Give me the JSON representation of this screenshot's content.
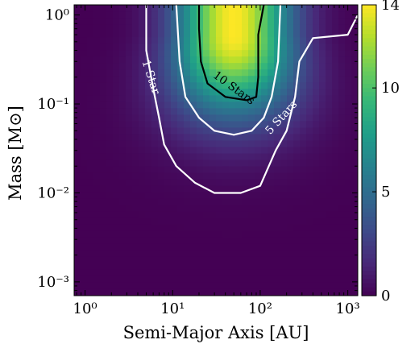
{
  "chart_data": {
    "type": "heatmap",
    "title": "",
    "xlabel": "Semi-Major Axis [AU]",
    "ylabel": "Mass [M⊙]",
    "x_scale": "log",
    "y_scale": "log",
    "xlim": [
      0.75,
      1300
    ],
    "ylim": [
      0.0007,
      1.3
    ],
    "x_ticks": [
      {
        "value": 1,
        "label": "10⁰"
      },
      {
        "value": 10,
        "label": "10¹"
      },
      {
        "value": 100,
        "label": "10²"
      },
      {
        "value": 1000,
        "label": "10³"
      }
    ],
    "y_ticks": [
      {
        "value": 0.001,
        "label": "10⁻³"
      },
      {
        "value": 0.01,
        "label": "10⁻²"
      },
      {
        "value": 0.1,
        "label": "10⁻¹"
      },
      {
        "value": 1,
        "label": "10⁰"
      }
    ],
    "colorbar": {
      "colormap": "viridis",
      "range": [
        0,
        14
      ],
      "ticks": [
        {
          "value": 0,
          "label": "0"
        },
        {
          "value": 5,
          "label": "5"
        },
        {
          "value": 10,
          "label": "10"
        },
        {
          "value": 14,
          "label": "14"
        }
      ]
    },
    "peak": {
      "x": 50,
      "y": 0.6,
      "value": 14
    },
    "contours": [
      {
        "level": 1,
        "label": "1 Star",
        "color": "#ffffff",
        "points": [
          [
            5,
            1.3
          ],
          [
            5,
            0.4
          ],
          [
            6,
            0.15
          ],
          [
            7,
            0.07
          ],
          [
            8,
            0.035
          ],
          [
            11,
            0.02
          ],
          [
            18,
            0.013
          ],
          [
            30,
            0.01
          ],
          [
            60,
            0.01
          ],
          [
            100,
            0.012
          ],
          [
            150,
            0.03
          ],
          [
            200,
            0.05
          ],
          [
            250,
            0.12
          ],
          [
            280,
            0.3
          ],
          [
            400,
            0.55
          ],
          [
            1000,
            0.6
          ],
          [
            1300,
            1.0
          ]
        ]
      },
      {
        "level": 5,
        "label": "5 Stars",
        "color": "#ffffff",
        "points": [
          [
            11,
            1.3
          ],
          [
            12,
            0.3
          ],
          [
            14,
            0.12
          ],
          [
            20,
            0.07
          ],
          [
            30,
            0.05
          ],
          [
            50,
            0.045
          ],
          [
            80,
            0.05
          ],
          [
            110,
            0.07
          ],
          [
            135,
            0.12
          ],
          [
            160,
            0.3
          ],
          [
            170,
            1.3
          ]
        ]
      },
      {
        "level": 10,
        "label": "10 Stars",
        "color": "#000000",
        "points": [
          [
            20,
            1.3
          ],
          [
            20,
            0.7
          ],
          [
            21,
            0.3
          ],
          [
            25,
            0.17
          ],
          [
            40,
            0.12
          ],
          [
            70,
            0.11
          ],
          [
            90,
            0.12
          ],
          [
            95,
            0.2
          ],
          [
            95,
            0.6
          ],
          [
            110,
            1.3
          ]
        ]
      }
    ],
    "grid": false
  }
}
